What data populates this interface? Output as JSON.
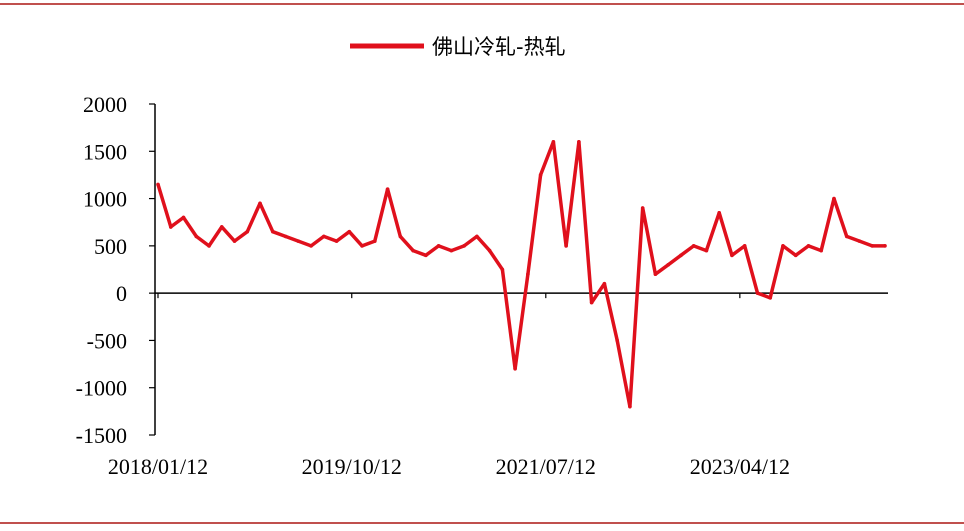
{
  "chart_data": {
    "type": "line",
    "legend": {
      "position": "top-center"
    },
    "series": [
      {
        "name": "佛山冷轧-热轧",
        "color": "#e0101c",
        "x": [
          "2018/01/12",
          "2018/02/23",
          "2018/04/06",
          "2018/05/18",
          "2018/06/29",
          "2018/08/10",
          "2018/09/21",
          "2018/11/02",
          "2018/12/14",
          "2019/01/25",
          "2019/03/08",
          "2019/04/19",
          "2019/05/31",
          "2019/07/12",
          "2019/08/23",
          "2019/10/04",
          "2019/11/15",
          "2019/12/27",
          "2020/02/07",
          "2020/03/20",
          "2020/05/01",
          "2020/06/12",
          "2020/07/24",
          "2020/09/04",
          "2020/10/16",
          "2020/11/27",
          "2021/01/08",
          "2021/02/19",
          "2021/04/02",
          "2021/05/14",
          "2021/06/25",
          "2021/08/06",
          "2021/09/17",
          "2021/10/29",
          "2021/12/10",
          "2022/01/21",
          "2022/03/04",
          "2022/04/15",
          "2022/05/27",
          "2022/07/08",
          "2022/08/19",
          "2022/09/30",
          "2022/11/11",
          "2022/12/23",
          "2023/02/03",
          "2023/03/17",
          "2023/04/28",
          "2023/06/09",
          "2023/07/21",
          "2023/09/01",
          "2023/10/13",
          "2023/11/24",
          "2024/01/05",
          "2024/02/16",
          "2024/03/29",
          "2024/05/10",
          "2024/06/21",
          "2024/08/02"
        ],
        "values": [
          1150,
          700,
          800,
          600,
          500,
          700,
          550,
          650,
          950,
          650,
          600,
          550,
          500,
          600,
          550,
          650,
          500,
          550,
          1100,
          600,
          450,
          400,
          500,
          450,
          500,
          600,
          450,
          250,
          -800,
          200,
          1250,
          1600,
          500,
          1600,
          -100,
          100,
          -500,
          -1200,
          900,
          200,
          300,
          400,
          500,
          450,
          850,
          400,
          500,
          0,
          -50,
          500,
          400,
          500,
          450,
          1000,
          600,
          550,
          500,
          500
        ]
      }
    ],
    "ylim": [
      -1500,
      2000
    ],
    "yticks": [
      "2000",
      "1500",
      "1000",
      "500",
      "0",
      "-500",
      "-1000",
      "-1500"
    ],
    "ytick_values": [
      2000,
      1500,
      1000,
      500,
      0,
      -500,
      -1000,
      -1500
    ],
    "xticks": [
      "2018/01/12",
      "2019/10/12",
      "2021/07/12",
      "2023/04/12"
    ],
    "grid": false
  }
}
